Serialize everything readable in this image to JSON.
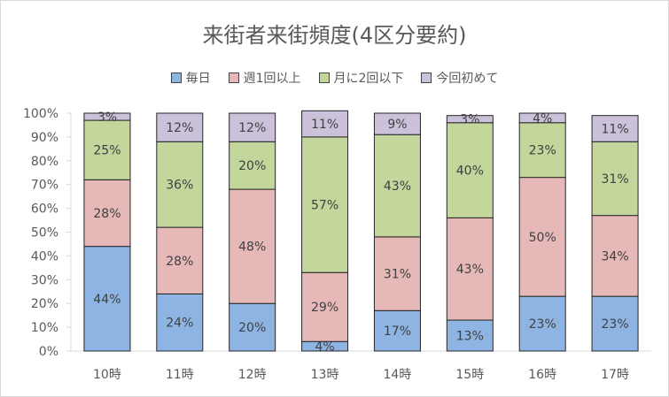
{
  "chart_data": {
    "type": "bar",
    "stacked": true,
    "percent": true,
    "title": "来街者来街頻度(4区分要約)",
    "categories": [
      "10時",
      "11時",
      "12時",
      "13時",
      "14時",
      "15時",
      "16時",
      "17時"
    ],
    "y_ticks": [
      "0%",
      "10%",
      "20%",
      "30%",
      "40%",
      "50%",
      "60%",
      "70%",
      "80%",
      "90%",
      "100%"
    ],
    "ylim": [
      0,
      100
    ],
    "legend_position": "top",
    "series": [
      {
        "name": "毎日",
        "color": "#8eb4e3",
        "values": [
          44,
          24,
          20,
          4,
          17,
          13,
          23,
          23
        ],
        "labels": [
          "44%",
          "24%",
          "20%",
          "4%",
          "17%",
          "13%",
          "23%",
          "23%"
        ]
      },
      {
        "name": "週1回以上",
        "color": "#e6b9b8",
        "values": [
          28,
          28,
          48,
          29,
          31,
          43,
          50,
          34
        ],
        "labels": [
          "28%",
          "28%",
          "48%",
          "29%",
          "31%",
          "43%",
          "50%",
          "34%"
        ]
      },
      {
        "name": "月に2回以下",
        "color": "#c3d69b",
        "values": [
          25,
          36,
          20,
          57,
          43,
          40,
          23,
          31
        ],
        "labels": [
          "25%",
          "36%",
          "20%",
          "57%",
          "43%",
          "40%",
          "23%",
          "31%"
        ]
      },
      {
        "name": "今回初めて",
        "color": "#ccc1da",
        "values": [
          3,
          12,
          12,
          11,
          9,
          3,
          4,
          11
        ],
        "labels": [
          "3%",
          "12%",
          "12%",
          "11%",
          "9%",
          "3%",
          "4%",
          "11%"
        ]
      }
    ]
  }
}
